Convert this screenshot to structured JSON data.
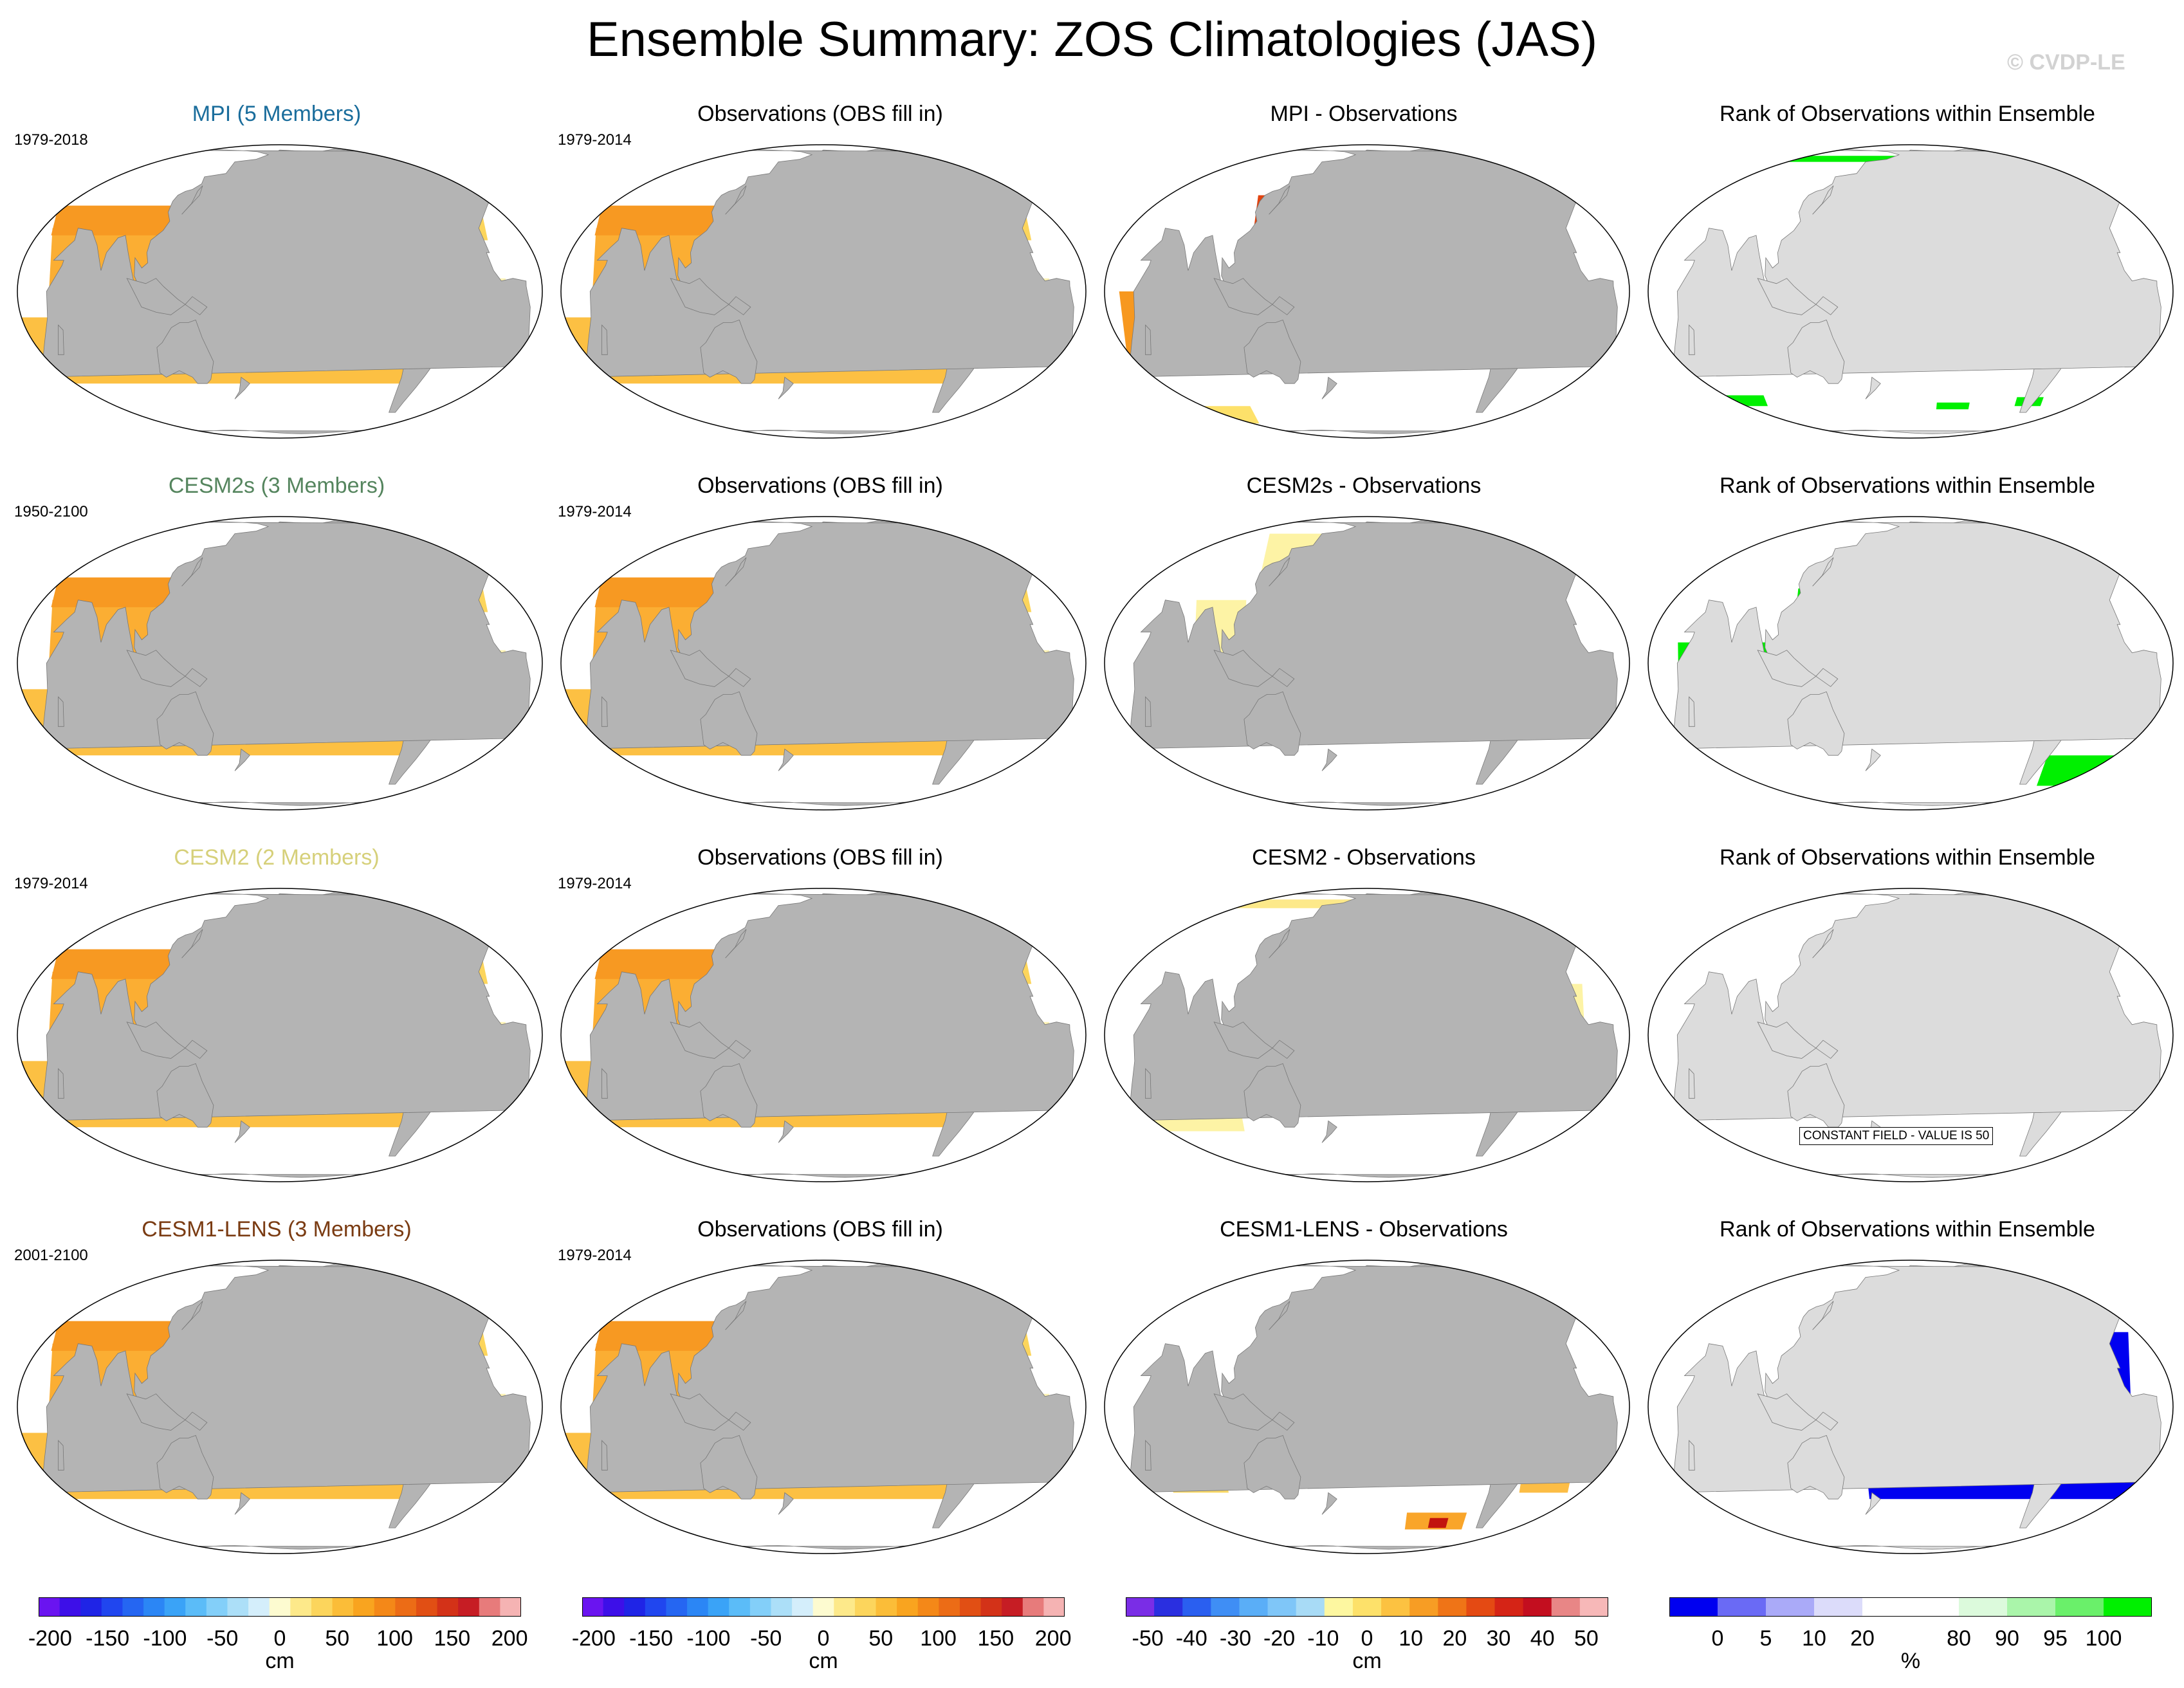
{
  "title": "Ensemble Summary: ZOS Climatologies (JAS)",
  "watermark": "© CVDP-LE",
  "colors": {
    "land": "#b4b4b4",
    "rank_land": "#dcdcdc",
    "mpi": "#1a6d9c",
    "cesm2s": "#55855e",
    "cesm2": "#d6d07a",
    "cesm1": "#7a3b12"
  },
  "panels": [
    {
      "title": "MPI (5 Members)",
      "color": "#1a6d9c",
      "years": "1979-2018",
      "kind": "model",
      "variant": "mpi"
    },
    {
      "title": "Observations (OBS fill in)",
      "color": "#000000",
      "years": "1979-2014",
      "kind": "obs"
    },
    {
      "title": "MPI - Observations",
      "color": "#000000",
      "years": "",
      "kind": "diff",
      "variant": "mpi"
    },
    {
      "title": "Rank of Observations within Ensemble",
      "color": "#000000",
      "years": "",
      "kind": "rank",
      "variant": "mpi"
    },
    {
      "title": "CESM2s (3 Members)",
      "color": "#55855e",
      "years": "1950-2100",
      "kind": "model",
      "variant": "cesm2s"
    },
    {
      "title": "Observations (OBS fill in)",
      "color": "#000000",
      "years": "1979-2014",
      "kind": "obs"
    },
    {
      "title": "CESM2s - Observations",
      "color": "#000000",
      "years": "",
      "kind": "diff",
      "variant": "cesm2s"
    },
    {
      "title": "Rank of Observations within Ensemble",
      "color": "#000000",
      "years": "",
      "kind": "rank",
      "variant": "cesm2s"
    },
    {
      "title": "CESM2 (2 Members)",
      "color": "#d6d07a",
      "years": "1979-2014",
      "kind": "model",
      "variant": "cesm2"
    },
    {
      "title": "Observations (OBS fill in)",
      "color": "#000000",
      "years": "1979-2014",
      "kind": "obs"
    },
    {
      "title": "CESM2 - Observations",
      "color": "#000000",
      "years": "",
      "kind": "diff",
      "variant": "cesm2"
    },
    {
      "title": "Rank of Observations within Ensemble",
      "color": "#000000",
      "years": "",
      "kind": "rank",
      "variant": "constant"
    },
    {
      "title": "CESM1-LENS (3 Members)",
      "color": "#7a3b12",
      "years": "2001-2100",
      "kind": "model",
      "variant": "cesm1"
    },
    {
      "title": "Observations (OBS fill in)",
      "color": "#000000",
      "years": "1979-2014",
      "kind": "obs"
    },
    {
      "title": "CESM1-LENS - Observations",
      "color": "#000000",
      "years": "",
      "kind": "diff",
      "variant": "cesm1"
    },
    {
      "title": "Rank of Observations within Ensemble",
      "color": "#000000",
      "years": "",
      "kind": "rank",
      "variant": "cesm1"
    }
  ],
  "constant_field_label": "CONSTANT FIELD - VALUE IS 50",
  "colorbars": [
    {
      "unit": "cm",
      "ticks": [
        "-200",
        "-150",
        "-100",
        "-50",
        "0",
        "50",
        "100",
        "150",
        "200"
      ],
      "tick_values": [
        -200,
        -150,
        -100,
        -50,
        0,
        50,
        100,
        150,
        200
      ],
      "range": [
        -210,
        210
      ],
      "colors": [
        "#6a14f0",
        "#3d0fe8",
        "#1f24e6",
        "#2046ef",
        "#2566f2",
        "#2b86f5",
        "#3aa3f7",
        "#5bbcf8",
        "#83cff9",
        "#acdff8",
        "#d4eefb",
        "#fdfbd0",
        "#fde98a",
        "#fcd55c",
        "#fbbd38",
        "#f9a41f",
        "#f48818",
        "#ec6c16",
        "#e14f14",
        "#d33218",
        "#c61d24",
        "#e77b7b",
        "#f5b3b3"
      ]
    },
    {
      "unit": "cm",
      "ticks": [
        "-200",
        "-150",
        "-100",
        "-50",
        "0",
        "50",
        "100",
        "150",
        "200"
      ],
      "tick_values": [
        -200,
        -150,
        -100,
        -50,
        0,
        50,
        100,
        150,
        200
      ],
      "range": [
        -210,
        210
      ],
      "colors": [
        "#6a14f0",
        "#3d0fe8",
        "#1f24e6",
        "#2046ef",
        "#2566f2",
        "#2b86f5",
        "#3aa3f7",
        "#5bbcf8",
        "#83cff9",
        "#acdff8",
        "#d4eefb",
        "#fdfbd0",
        "#fde98a",
        "#fcd55c",
        "#fbbd38",
        "#f9a41f",
        "#f48818",
        "#ec6c16",
        "#e14f14",
        "#d33218",
        "#c61d24",
        "#e77b7b",
        "#f5b3b3"
      ]
    },
    {
      "unit": "cm",
      "ticks": [
        "-50",
        "-40",
        "-30",
        "-20",
        "-10",
        "0",
        "10",
        "20",
        "30",
        "40",
        "50"
      ],
      "tick_values": [
        -50,
        -40,
        -30,
        -20,
        -10,
        0,
        10,
        20,
        30,
        40,
        50
      ],
      "range": [
        -55,
        55
      ],
      "colors": [
        "#7a2de6",
        "#2a2fe0",
        "#2a5ff0",
        "#3f8ef5",
        "#5aaef7",
        "#7fc6f8",
        "#a8dbf6",
        "#fdf7a0",
        "#fde16a",
        "#fcc241",
        "#f79d24",
        "#ef7417",
        "#e44a13",
        "#d52416",
        "#c30e1f",
        "#e88686",
        "#f7b8b8"
      ]
    },
    {
      "unit": "%",
      "ticks": [
        "0",
        "5",
        "10",
        "20",
        "80",
        "90",
        "95",
        "100"
      ],
      "tick_values": [
        0,
        5,
        10,
        20,
        80,
        90,
        95,
        100
      ],
      "positions": [
        1,
        2,
        3,
        4,
        6,
        7,
        8,
        9
      ],
      "range": [
        0,
        10
      ],
      "colors": [
        "#0000f0",
        "#6a6af5",
        "#aaaaf8",
        "#dcdcfa",
        "#ffffff",
        "#ffffff",
        "#dcfadc",
        "#aaf5aa",
        "#6af06a",
        "#00f000"
      ]
    }
  ]
}
